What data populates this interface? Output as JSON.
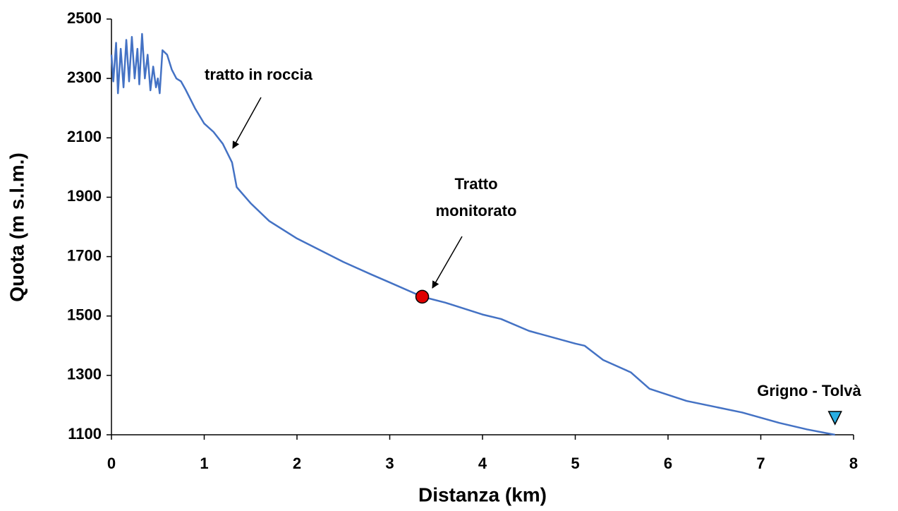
{
  "chart_data": {
    "type": "line",
    "xlabel": "Distanza (km)",
    "ylabel": "Quota (m s.l.m.)",
    "xlim": [
      0,
      8
    ],
    "ylim": [
      1100,
      2500
    ],
    "xticks": [
      0,
      1,
      2,
      3,
      4,
      5,
      6,
      7,
      8
    ],
    "yticks": [
      1100,
      1300,
      1500,
      1700,
      1900,
      2100,
      2300,
      2500
    ],
    "series": [
      {
        "color": "#4472c4",
        "x": [
          0,
          0.02,
          0.05,
          0.07,
          0.1,
          0.13,
          0.16,
          0.19,
          0.22,
          0.25,
          0.28,
          0.3,
          0.33,
          0.36,
          0.39,
          0.42,
          0.45,
          0.48,
          0.5,
          0.52,
          0.55,
          0.6,
          0.65,
          0.7,
          0.75,
          0.8,
          0.9,
          1.0,
          1.1,
          1.2,
          1.3,
          1.35,
          1.5,
          1.7,
          2.0,
          2.5,
          2.8,
          3.0,
          3.35,
          3.6,
          4.0,
          4.2,
          4.5,
          5.0,
          5.1,
          5.3,
          5.6,
          5.8,
          6.2,
          6.8,
          7.2,
          7.5,
          7.8
        ],
        "values": [
          2380,
          2290,
          2420,
          2250,
          2400,
          2270,
          2430,
          2290,
          2440,
          2300,
          2400,
          2280,
          2450,
          2300,
          2380,
          2260,
          2340,
          2270,
          2300,
          2250,
          2395,
          2380,
          2330,
          2300,
          2290,
          2262,
          2200,
          2148,
          2120,
          2080,
          2017,
          1934,
          1880,
          1820,
          1761,
          1682,
          1640,
          1613,
          1565,
          1545,
          1505,
          1490,
          1450,
          1407,
          1400,
          1352,
          1310,
          1255,
          1214,
          1175,
          1140,
          1118,
          1100
        ]
      }
    ],
    "markers": [
      {
        "shape": "circle",
        "color": "#e00000",
        "x": 3.35,
        "y": 1565
      },
      {
        "shape": "triangle",
        "color": "#29aee3",
        "x": 7.8,
        "y": 1157
      }
    ],
    "annotations": [
      {
        "text": "tratto in roccia"
      },
      {
        "text": [
          "Tratto",
          "monitorato"
        ]
      },
      {
        "text": "Grigno - Tolvà"
      }
    ]
  }
}
